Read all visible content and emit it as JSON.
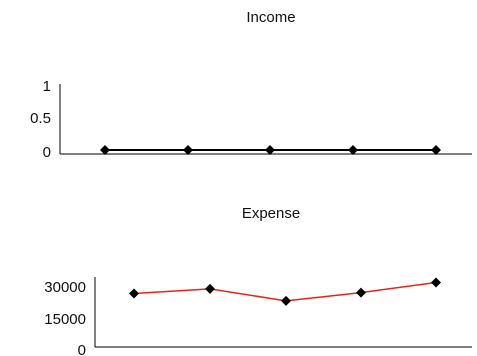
{
  "chart_data": [
    {
      "type": "line",
      "title": "Income",
      "x": [
        1,
        2,
        3,
        4,
        5
      ],
      "ylim": [
        0,
        1
      ],
      "yticks": [
        "0",
        "0.5",
        "1"
      ],
      "series": [
        {
          "values": [
            0,
            0,
            0,
            0,
            0
          ],
          "color": "#000000",
          "marker": "diamond"
        }
      ],
      "grid": false
    },
    {
      "type": "line",
      "title": "Expense",
      "x": [
        1,
        2,
        3,
        4,
        5
      ],
      "ylim": [
        0,
        30000
      ],
      "yticks": [
        "0",
        "15000",
        "30000"
      ],
      "series": [
        {
          "values": [
            27000,
            29500,
            23000,
            27500,
            33000
          ],
          "color": "#e8241a",
          "marker": "diamond"
        }
      ],
      "grid": false
    }
  ]
}
